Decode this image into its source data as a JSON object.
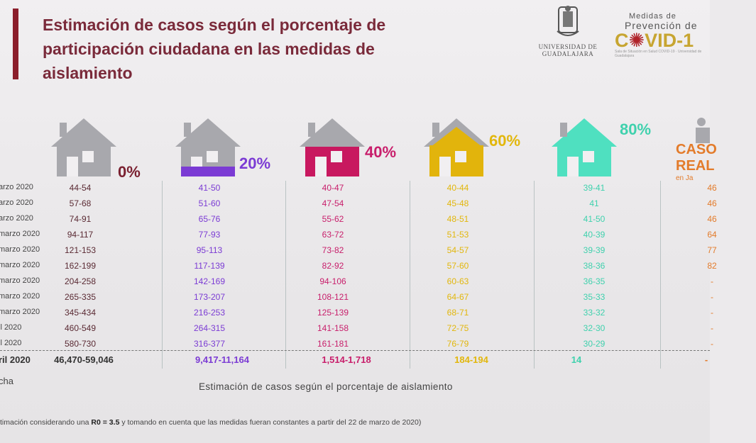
{
  "title_lines": [
    "Estimación de casos según el porcentaje de",
    "participación ciudadana en las medidas de",
    "aislamiento"
  ],
  "logos": {
    "udg_text_1": "UNIVERSIDAD DE",
    "udg_text_2": "GUADALAJARA",
    "covid_line1": "Medidas de",
    "covid_line2": "Prevención de",
    "covid_line3a": "C",
    "covid_line3b": "VID-1",
    "covid_small": "Sala de Situación en Salud COVID-19 · Universidad de Guadalajara"
  },
  "colors": {
    "c0": "#7a2030",
    "c20": "#7b3bd4",
    "c40": "#c81e6b",
    "c60": "#e2b70c",
    "c80": "#3fd1ad",
    "real": "#e37b2a"
  },
  "columns": [
    {
      "pct": "0%",
      "color": "#7a2030",
      "house": "#a8a8ad"
    },
    {
      "pct": "20%",
      "color": "#7b3bd4",
      "house": "#a8a8ad"
    },
    {
      "pct": "40%",
      "color": "#c81e6b",
      "house": "#c8185f"
    },
    {
      "pct": "60%",
      "color": "#e2b70c",
      "house": "#e2b40c"
    },
    {
      "pct": "80%",
      "color": "#3fd1ad",
      "house": "#4fe0c0"
    }
  ],
  "dates": [
    "arzo 2020",
    "arzo 2020",
    "arzo 2020",
    "marzo 2020",
    "marzo 2020",
    "marzo 2020",
    "marzo 2020",
    "marzo 2020",
    "marzo 2020",
    "il 2020",
    "il 2020"
  ],
  "rows": [
    [
      "44-54",
      "41-50",
      "40-47",
      "40-44",
      "39-41",
      "46"
    ],
    [
      "57-68",
      "51-60",
      "47-54",
      "45-48",
      "41",
      "46"
    ],
    [
      "74-91",
      "65-76",
      "55-62",
      "48-51",
      "41-50",
      "46"
    ],
    [
      "94-117",
      "77-93",
      "63-72",
      "51-53",
      "40-39",
      "64"
    ],
    [
      "121-153",
      "95-113",
      "73-82",
      "54-57",
      "39-39",
      "77"
    ],
    [
      "162-199",
      "117-139",
      "82-92",
      "57-60",
      "38-36",
      "82"
    ],
    [
      "204-258",
      "142-169",
      "94-106",
      "60-63",
      "36-35",
      "-"
    ],
    [
      "265-335",
      "173-207",
      "108-121",
      "64-67",
      "35-33",
      "-"
    ],
    [
      "345-434",
      "216-253",
      "125-139",
      "68-71",
      "33-32",
      "-"
    ],
    [
      "460-549",
      "264-315",
      "141-158",
      "72-75",
      "32-30",
      "-"
    ],
    [
      "580-730",
      "316-377",
      "161-181",
      "76-79",
      "30-29",
      "-"
    ]
  ],
  "total": {
    "date": "ril 2020",
    "values": [
      "46,470-59,046",
      "9,417-11,164",
      "1,514-1,718",
      "184-194",
      "14",
      "-"
    ]
  },
  "real_label_1": "CASO",
  "real_label_2": "REAL",
  "real_sub": "en Ja",
  "fecha_label": "cha",
  "axis_caption": "Estimación de casos según el porcentaje de aislamiento",
  "footnote_pre": "timación considerando una ",
  "footnote_r0": "R0 = 3.5",
  "footnote_post": " y tomando en cuenta que las medidas fueran constantes a partir del 22 de marzo de 2020)"
}
